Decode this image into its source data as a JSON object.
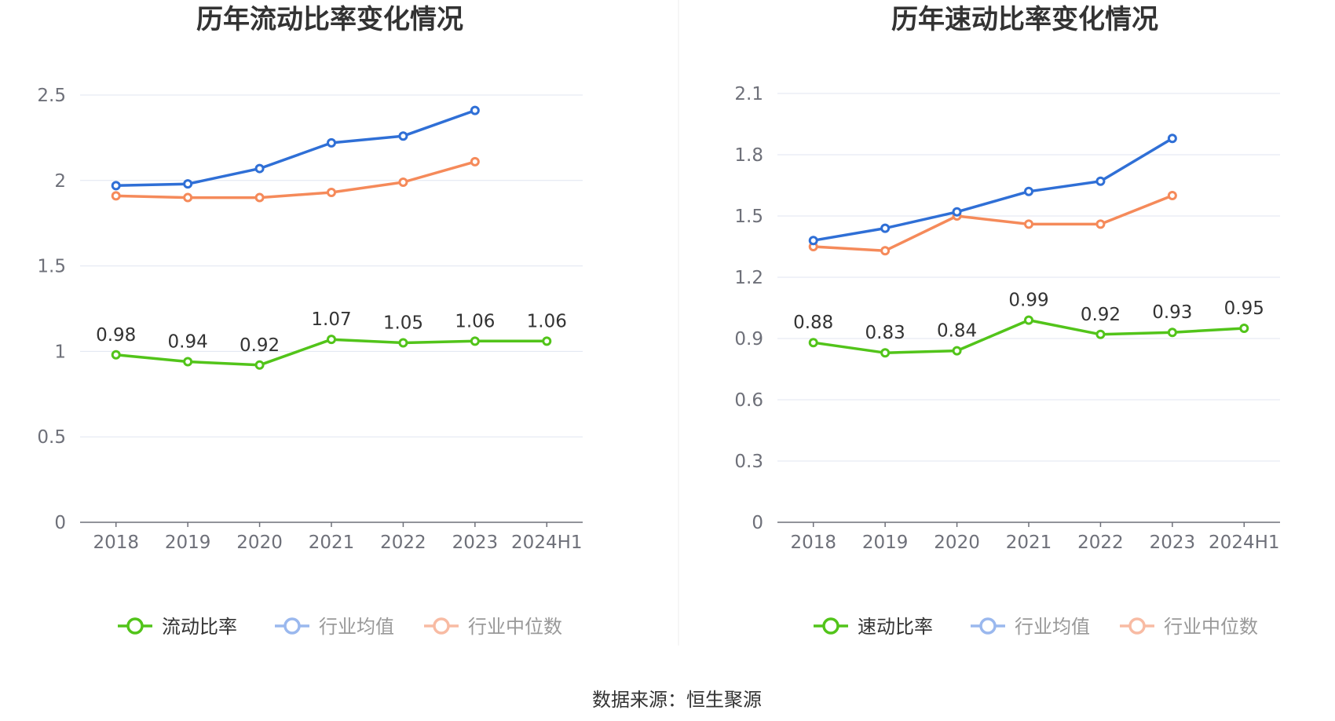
{
  "source_label": "数据来源：恒生聚源",
  "chart_data": [
    {
      "type": "line",
      "title": "历年流动比率变化情况",
      "categories": [
        "2018",
        "2019",
        "2020",
        "2021",
        "2022",
        "2023",
        "2024H1"
      ],
      "ylim": [
        0,
        2.5
      ],
      "yticks": [
        "0",
        "0.5",
        "1",
        "1.5",
        "2",
        "2.5"
      ],
      "ytick_values": [
        0,
        0.5,
        1,
        1.5,
        2,
        2.5
      ],
      "grid": true,
      "legend_position": "bottom",
      "series": [
        {
          "name": "流动比率",
          "color": "#52c41a",
          "values": [
            0.98,
            0.94,
            0.92,
            1.07,
            1.05,
            1.06,
            1.06
          ],
          "labels": [
            "0.98",
            "0.94",
            "0.92",
            "1.07",
            "1.05",
            "1.06",
            "1.06"
          ],
          "show_labels": true,
          "legend_active": true
        },
        {
          "name": "行业均值",
          "color": "#2f6fd6",
          "values": [
            1.97,
            1.98,
            2.07,
            2.22,
            2.26,
            2.41,
            null
          ],
          "show_labels": false,
          "legend_active": false
        },
        {
          "name": "行业中位数",
          "color": "#f58a5a",
          "values": [
            1.91,
            1.9,
            1.9,
            1.93,
            1.99,
            2.11,
            null
          ],
          "show_labels": false,
          "legend_active": false
        }
      ]
    },
    {
      "type": "line",
      "title": "历年速动比率变化情况",
      "categories": [
        "2018",
        "2019",
        "2020",
        "2021",
        "2022",
        "2023",
        "2024H1"
      ],
      "ylim": [
        0,
        2.1
      ],
      "yticks": [
        "0",
        "0.3",
        "0.6",
        "0.9",
        "1.2",
        "1.5",
        "1.8",
        "2.1"
      ],
      "ytick_values": [
        0,
        0.3,
        0.6,
        0.9,
        1.2,
        1.5,
        1.8,
        2.1
      ],
      "grid": true,
      "legend_position": "bottom",
      "series": [
        {
          "name": "速动比率",
          "color": "#52c41a",
          "values": [
            0.88,
            0.83,
            0.84,
            0.99,
            0.92,
            0.93,
            0.95
          ],
          "labels": [
            "0.88",
            "0.83",
            "0.84",
            "0.99",
            "0.92",
            "0.93",
            "0.95"
          ],
          "show_labels": true,
          "legend_active": true
        },
        {
          "name": "行业均值",
          "color": "#2f6fd6",
          "values": [
            1.38,
            1.44,
            1.52,
            1.62,
            1.67,
            1.88,
            null
          ],
          "show_labels": false,
          "legend_active": false
        },
        {
          "name": "行业中位数",
          "color": "#f58a5a",
          "values": [
            1.35,
            1.33,
            1.5,
            1.46,
            1.46,
            1.6,
            null
          ],
          "show_labels": false,
          "legend_active": false
        }
      ]
    }
  ],
  "legend_inactive_colors": {
    "行业均值": "#9ab8ee",
    "行业中位数": "#f8bba3"
  },
  "legend_text_colors": {
    "active": "#333333",
    "inactive": "#999999"
  }
}
